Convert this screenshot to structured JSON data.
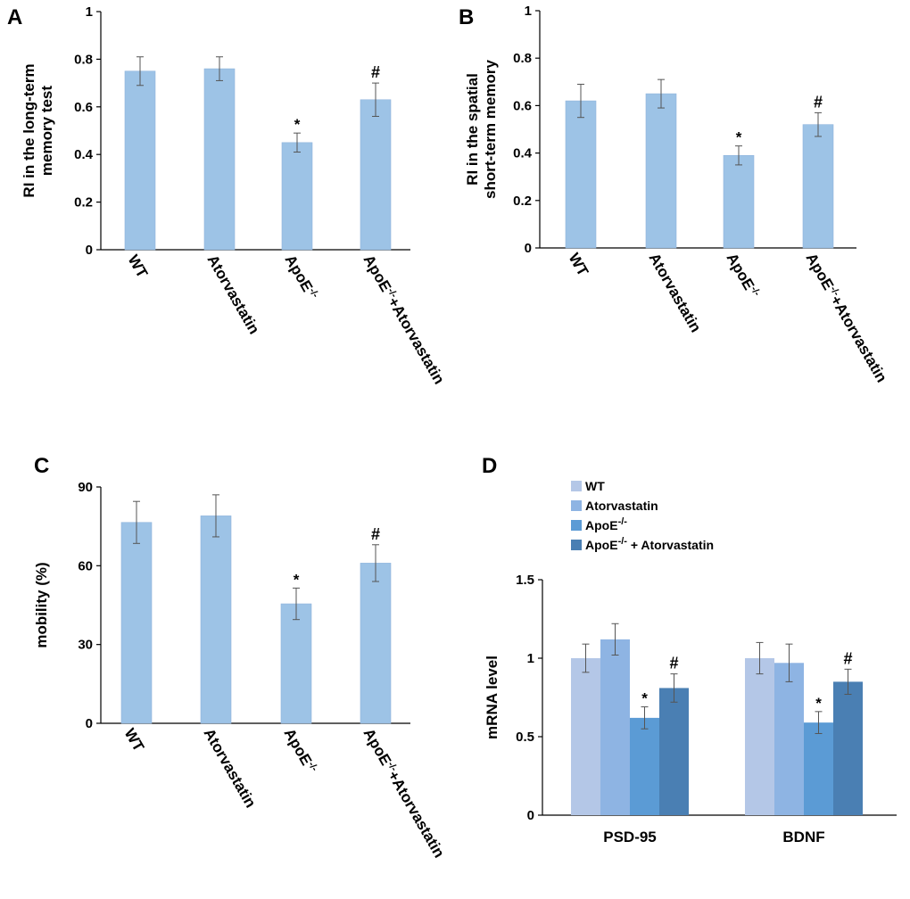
{
  "chart_data": [
    {
      "panel": "A",
      "type": "bar",
      "title": "",
      "xlabel": "",
      "ylabel_lines": [
        "RI in the long-term",
        "memory test"
      ],
      "ylim": [
        0,
        1
      ],
      "yticks": [
        "0",
        "0.2",
        "0.4",
        "0.6",
        "0.8",
        "1"
      ],
      "categories": [
        {
          "base": "WT"
        },
        {
          "base": "Atorvastatin"
        },
        {
          "base": "ApoE",
          "sup": "-/-"
        },
        {
          "base": "ApoE",
          "sup": "-/-",
          "after": "+Atorvastatin"
        }
      ],
      "values": [
        0.75,
        0.76,
        0.45,
        0.63
      ],
      "errors": [
        0.06,
        0.05,
        0.04,
        0.07
      ],
      "annotations": [
        "",
        "",
        "*",
        "#"
      ],
      "color": "#9dc3e6"
    },
    {
      "panel": "B",
      "type": "bar",
      "title": "",
      "xlabel": "",
      "ylabel_lines": [
        "RI in the spatial",
        "short-term memory"
      ],
      "ylim": [
        0,
        1
      ],
      "yticks": [
        "0",
        "0.2",
        "0.4",
        "0.6",
        "0.8",
        "1"
      ],
      "categories": [
        {
          "base": "WT"
        },
        {
          "base": "Atorvastatin"
        },
        {
          "base": "ApoE",
          "sup": "-/-"
        },
        {
          "base": "ApoE",
          "sup": "-/-",
          "after": "+Atorvastatin"
        }
      ],
      "values": [
        0.62,
        0.65,
        0.39,
        0.52
      ],
      "errors": [
        0.07,
        0.06,
        0.04,
        0.05
      ],
      "annotations": [
        "",
        "",
        "*",
        "#"
      ],
      "color": "#9dc3e6"
    },
    {
      "panel": "C",
      "type": "bar",
      "title": "",
      "xlabel": "",
      "ylabel_lines": [
        "mobility (%)"
      ],
      "ylim": [
        0,
        90
      ],
      "yticks": [
        "0",
        "30",
        "60",
        "90"
      ],
      "categories": [
        {
          "base": "WT"
        },
        {
          "base": "Atorvastatin"
        },
        {
          "base": "ApoE",
          "sup": "-/-"
        },
        {
          "base": "ApoE",
          "sup": "-/-",
          "after": "+Atorvastatin"
        }
      ],
      "values": [
        76.5,
        79,
        45.5,
        61
      ],
      "errors": [
        8,
        8,
        6,
        7
      ],
      "annotations": [
        "",
        "",
        "*",
        "#"
      ],
      "color": "#9dc3e6"
    },
    {
      "panel": "D",
      "type": "bar",
      "title": "",
      "xlabel": "",
      "ylabel_lines": [
        "mRNA level"
      ],
      "ylim": [
        0,
        1.5
      ],
      "yticks": [
        "0",
        "0.5",
        "1",
        "1.5"
      ],
      "categories": [
        "PSD-95",
        "BDNF"
      ],
      "legend": [
        {
          "base": "WT"
        },
        {
          "base": "Atorvastatin"
        },
        {
          "base": "ApoE",
          "sup": "-/-"
        },
        {
          "base": "ApoE",
          "sup": "-/-",
          "after": " + Atorvastatin"
        }
      ],
      "series": [
        {
          "name": "WT",
          "values": [
            1.0,
            1.0
          ],
          "errors": [
            0.09,
            0.1
          ],
          "annotations": [
            "",
            ""
          ],
          "color": "#b4c7e7"
        },
        {
          "name": "Atorvastatin",
          "values": [
            1.12,
            0.97
          ],
          "errors": [
            0.1,
            0.12
          ],
          "annotations": [
            "",
            ""
          ],
          "color": "#8eb4e3"
        },
        {
          "name": "ApoE-/-",
          "values": [
            0.62,
            0.59
          ],
          "errors": [
            0.07,
            0.07
          ],
          "annotations": [
            "*",
            "*"
          ],
          "color": "#5b9bd5"
        },
        {
          "name": "ApoE-/- + Atorvastatin",
          "values": [
            0.81,
            0.85
          ],
          "errors": [
            0.09,
            0.08
          ],
          "annotations": [
            "#",
            "#"
          ],
          "color": "#4a7fb3"
        }
      ]
    }
  ]
}
